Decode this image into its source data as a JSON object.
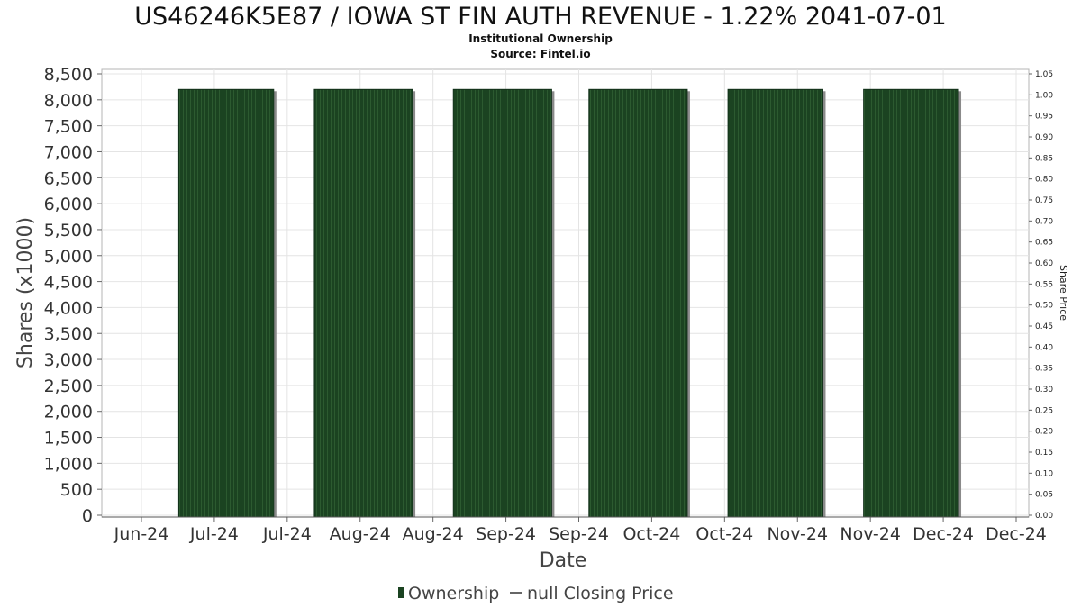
{
  "chart_data": {
    "type": "bar",
    "title": "US46246K5E87 / IOWA ST FIN AUTH REVENUE - 1.22% 2041-07-01",
    "subtitle_lines": [
      "Institutional Ownership",
      "Source: Fintel.io"
    ],
    "xlabel": "Date",
    "ylabel": "Shares (x1000)",
    "y2label": "Share Price",
    "ylim": [
      0,
      8500
    ],
    "y2lim": [
      0,
      1.05
    ],
    "y_ticks": [
      "0",
      "500",
      "1,000",
      "1,500",
      "2,000",
      "2,500",
      "3,000",
      "3,500",
      "4,000",
      "4,500",
      "5,000",
      "5,500",
      "6,000",
      "6,500",
      "7,000",
      "7,500",
      "8,000",
      "8,500"
    ],
    "y2_ticks": [
      "0.00",
      "0.05",
      "0.10",
      "0.15",
      "0.20",
      "0.25",
      "0.30",
      "0.35",
      "0.40",
      "0.45",
      "0.50",
      "0.55",
      "0.60",
      "0.65",
      "0.70",
      "0.75",
      "0.80",
      "0.85",
      "0.90",
      "0.95",
      "1.00",
      "1.05"
    ],
    "x_ticks": [
      "Jun-24",
      "Jul-24",
      "Jul-24",
      "Aug-24",
      "Aug-24",
      "Sep-24",
      "Sep-24",
      "Oct-24",
      "Oct-24",
      "Nov-24",
      "Nov-24",
      "Dec-24",
      "Dec-24"
    ],
    "series": [
      {
        "name": "Ownership",
        "color": "#1a4220",
        "bars": [
          {
            "start": "2024-06-30",
            "end": "2024-07-28",
            "value": 8200
          },
          {
            "start": "2024-08-09",
            "end": "2024-09-07",
            "value": 8200
          },
          {
            "start": "2024-09-19",
            "end": "2024-10-18",
            "value": 8200
          },
          {
            "start": "2024-10-29",
            "end": "2024-11-27",
            "value": 8200
          },
          {
            "start": "2024-12-09",
            "end": "2025-01-06",
            "value": 8200
          },
          {
            "start": "2025-01-18",
            "end": "2025-02-15",
            "value": 8200
          }
        ]
      },
      {
        "name": "null Closing Price",
        "color": "#666666",
        "values": []
      }
    ],
    "grid": true,
    "legend_position": "bottom-center"
  }
}
